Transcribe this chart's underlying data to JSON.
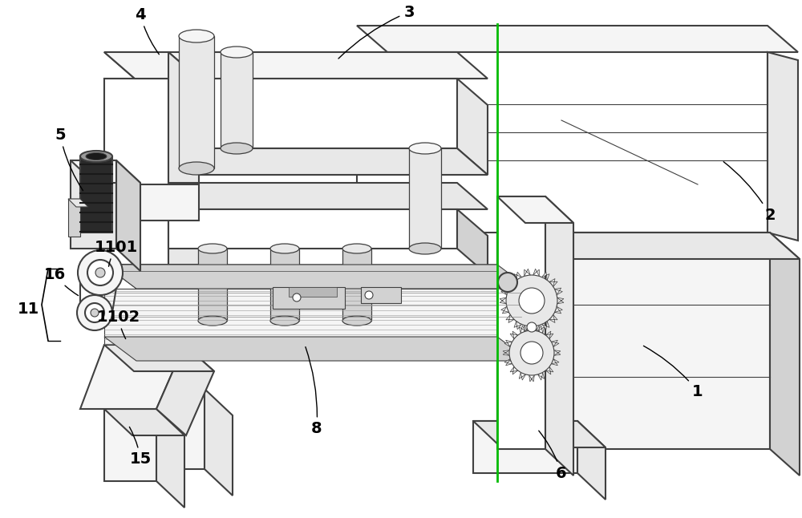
{
  "background_color": "#ffffff",
  "line_color": "#404040",
  "lw_main": 1.5,
  "lw_detail": 0.8,
  "fill_white": "#ffffff",
  "fill_vlight": "#f5f5f5",
  "fill_light": "#e8e8e8",
  "fill_medium": "#d2d2d2",
  "fill_dark": "#b8b8b8",
  "fill_darker": "#9a9a9a",
  "fill_black": "#2a2a2a",
  "green": "#00bb00",
  "fontsize": 14,
  "dpi": 100
}
